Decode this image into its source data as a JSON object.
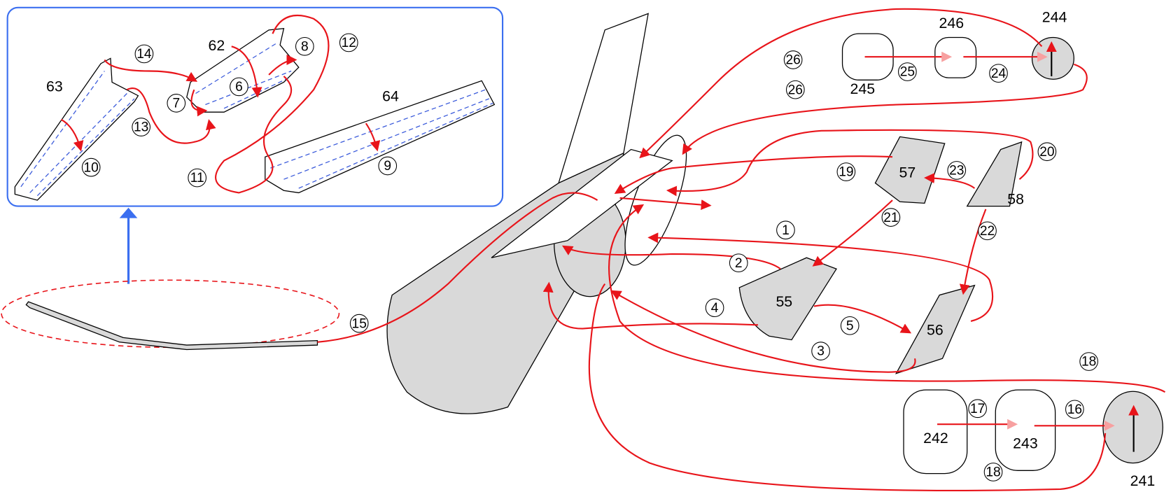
{
  "part_labels": [
    "63",
    "62",
    "64",
    "244",
    "246",
    "245",
    "57",
    "58",
    "55",
    "56",
    "242",
    "243",
    "241"
  ],
  "step_labels": [
    "14",
    "12",
    "8",
    "7",
    "6",
    "13",
    "10",
    "11",
    "9",
    "26",
    "26",
    "25",
    "24",
    "20",
    "19",
    "23",
    "21",
    "22",
    "1",
    "2",
    "4",
    "5",
    "3",
    "15",
    "18",
    "17",
    "16",
    "18"
  ]
}
